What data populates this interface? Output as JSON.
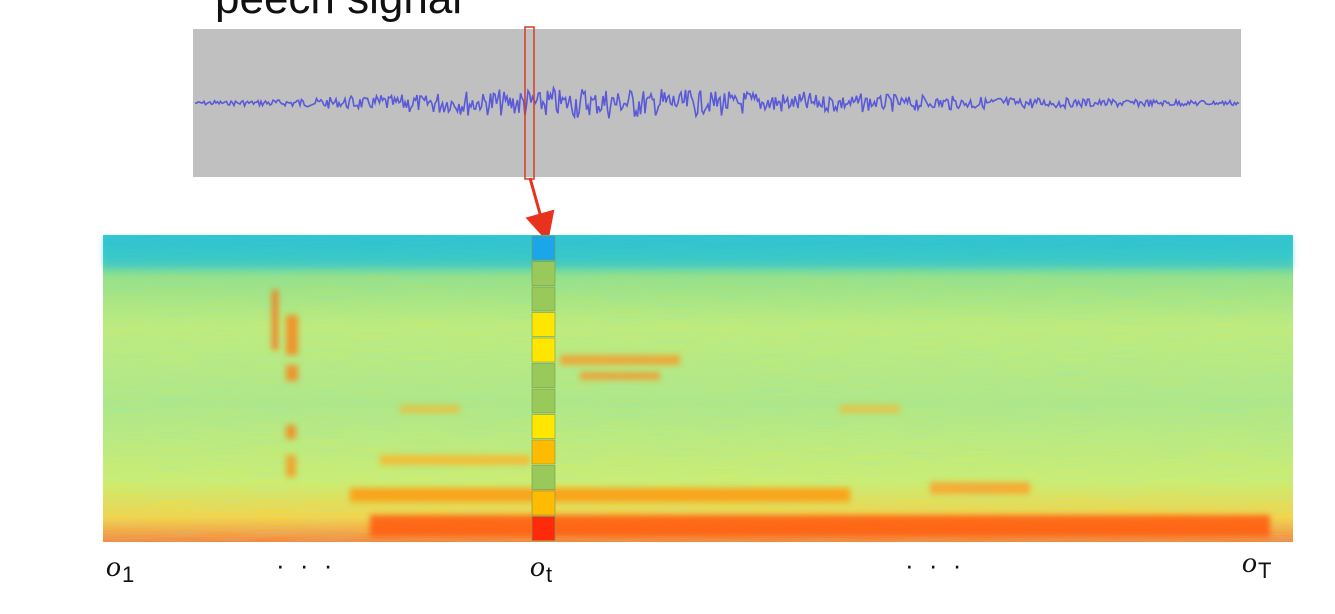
{
  "title_fragment": "peech signal",
  "colors": {
    "waveform_bg": "#c0c0c0",
    "waveform": "#5a5ad8",
    "frame_highlight": "#d63a24",
    "arrow": "#e8321e"
  },
  "feature_vector": {
    "cells": [
      "#1aa6e8",
      "#99c95a",
      "#99c95a",
      "#ffe600",
      "#ffe600",
      "#99c95a",
      "#99c95a",
      "#ffe600",
      "#ffbb00",
      "#99c95a",
      "#ffbb00",
      "#ff2a0a"
    ]
  },
  "labels": {
    "o1": {
      "base": "o",
      "sub": "1"
    },
    "ot": {
      "base": "o",
      "sub": "t"
    },
    "oT": {
      "base": "o",
      "sub": "T"
    },
    "dots_left": "· · ·",
    "dots_right": "· · ·"
  }
}
